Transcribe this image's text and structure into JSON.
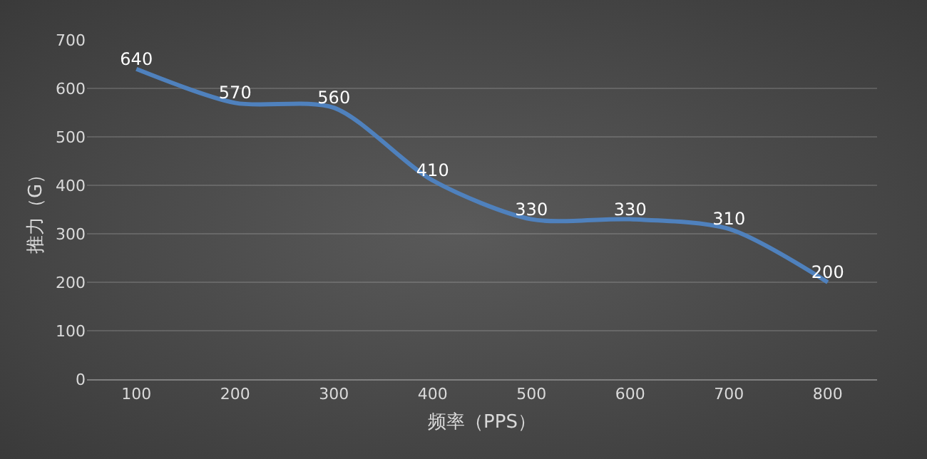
{
  "chart_data": {
    "type": "line",
    "xlabel": "频率（PPS）",
    "ylabel": "推力（G）",
    "categories": [
      "100",
      "200",
      "300",
      "400",
      "500",
      "600",
      "700",
      "800"
    ],
    "series": [
      {
        "color": "#4f81bd",
        "values": [
          640,
          570,
          560,
          410,
          330,
          330,
          310,
          200
        ]
      }
    ],
    "ylim": [
      0,
      700
    ],
    "yticks": [
      0,
      100,
      200,
      300,
      400,
      500,
      600,
      700
    ],
    "grid": "y",
    "data_labels": true,
    "line_style": "solid"
  }
}
